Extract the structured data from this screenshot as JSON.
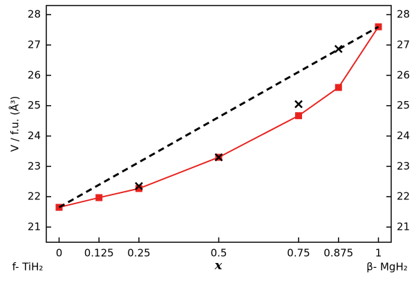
{
  "chart_data": {
    "type": "line",
    "ylabel": "V / f.u. (Å³)",
    "xlabel": "x",
    "left_end_label": "f- TiH₂",
    "right_end_label": "β- MgH₂",
    "xlim": [
      -0.04,
      1.04
    ],
    "xticks": [
      0,
      0.125,
      0.25,
      0.5,
      0.75,
      0.875,
      1
    ],
    "ylim": [
      20.5,
      28.3
    ],
    "yticks": [
      21,
      22,
      23,
      24,
      25,
      26,
      27,
      28
    ],
    "series": [
      {
        "color": "#e8231f",
        "line": "solid",
        "marker": "square",
        "x": [
          0,
          0.125,
          0.25,
          0.5,
          0.75,
          0.875,
          1
        ],
        "values": [
          21.65,
          21.97,
          22.27,
          23.3,
          24.67,
          25.6,
          27.6
        ]
      },
      {
        "color": "#000000",
        "line": "dashed",
        "marker": "none",
        "x": [
          0,
          1
        ],
        "values": [
          21.65,
          27.6
        ]
      },
      {
        "color": "#000000",
        "line": "none",
        "marker": "cross",
        "x": [
          0.25,
          0.5,
          0.75,
          0.875
        ],
        "values": [
          22.35,
          23.3,
          25.05,
          26.87
        ]
      }
    ]
  }
}
